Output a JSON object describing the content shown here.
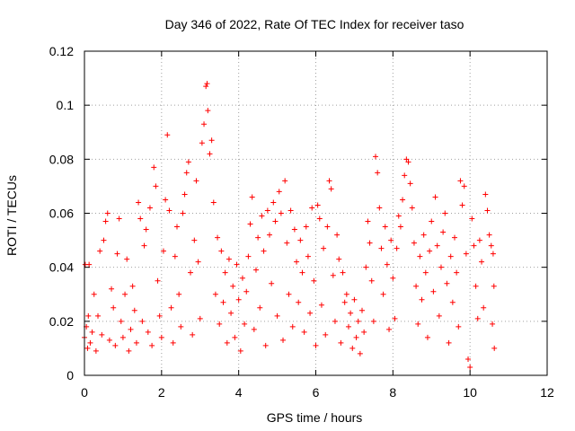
{
  "chart_data": {
    "type": "scatter",
    "title": "Day 346 of 2022, Rate Of TEC Index for receiver taso",
    "xlabel": "GPS time / hours",
    "ylabel": "ROTI / TECUs",
    "xlim": [
      0,
      12
    ],
    "ylim": [
      0,
      0.12
    ],
    "x_ticks": [
      0,
      2,
      4,
      6,
      8,
      10,
      12
    ],
    "x_tick_labels": [
      "0",
      "2",
      "4",
      "6",
      "8",
      "10",
      "12"
    ],
    "y_ticks": [
      0,
      0.02,
      0.04,
      0.06,
      0.08,
      0.1,
      0.12
    ],
    "y_tick_labels": [
      "0",
      "0.02",
      "0.04",
      "0.06",
      "0.08",
      "0.1",
      "0.12"
    ],
    "grid": true,
    "marker": "+",
    "color": "#ff0000",
    "series": [
      {
        "points": [
          [
            0.0,
            0.014
          ],
          [
            0.02,
            0.041
          ],
          [
            0.05,
            0.018
          ],
          [
            0.08,
            0.01
          ],
          [
            0.1,
            0.022
          ],
          [
            0.12,
            0.041
          ],
          [
            0.15,
            0.012
          ],
          [
            0.2,
            0.016
          ],
          [
            0.25,
            0.03
          ],
          [
            0.3,
            0.009
          ],
          [
            0.35,
            0.022
          ],
          [
            0.4,
            0.046
          ],
          [
            0.45,
            0.015
          ],
          [
            0.5,
            0.05
          ],
          [
            0.55,
            0.057
          ],
          [
            0.6,
            0.06
          ],
          [
            0.65,
            0.013
          ],
          [
            0.7,
            0.032
          ],
          [
            0.75,
            0.025
          ],
          [
            0.8,
            0.011
          ],
          [
            0.85,
            0.045
          ],
          [
            0.9,
            0.058
          ],
          [
            0.95,
            0.02
          ],
          [
            1.0,
            0.014
          ],
          [
            1.05,
            0.03
          ],
          [
            1.1,
            0.043
          ],
          [
            1.15,
            0.009
          ],
          [
            1.2,
            0.017
          ],
          [
            1.25,
            0.033
          ],
          [
            1.3,
            0.024
          ],
          [
            1.35,
            0.012
          ],
          [
            1.4,
            0.064
          ],
          [
            1.45,
            0.058
          ],
          [
            1.5,
            0.02
          ],
          [
            1.55,
            0.048
          ],
          [
            1.6,
            0.054
          ],
          [
            1.65,
            0.016
          ],
          [
            1.7,
            0.062
          ],
          [
            1.75,
            0.011
          ],
          [
            1.8,
            0.077
          ],
          [
            1.85,
            0.07
          ],
          [
            1.9,
            0.035
          ],
          [
            1.95,
            0.022
          ],
          [
            2.0,
            0.014
          ],
          [
            2.05,
            0.046
          ],
          [
            2.1,
            0.065
          ],
          [
            2.15,
            0.089
          ],
          [
            2.2,
            0.061
          ],
          [
            2.25,
            0.025
          ],
          [
            2.3,
            0.012
          ],
          [
            2.35,
            0.044
          ],
          [
            2.4,
            0.055
          ],
          [
            2.45,
            0.03
          ],
          [
            2.5,
            0.018
          ],
          [
            2.55,
            0.06
          ],
          [
            2.6,
            0.067
          ],
          [
            2.65,
            0.075
          ],
          [
            2.7,
            0.079
          ],
          [
            2.75,
            0.038
          ],
          [
            2.8,
            0.015
          ],
          [
            2.85,
            0.05
          ],
          [
            2.9,
            0.072
          ],
          [
            2.95,
            0.042
          ],
          [
            3.0,
            0.021
          ],
          [
            3.05,
            0.086
          ],
          [
            3.1,
            0.093
          ],
          [
            3.15,
            0.107
          ],
          [
            3.18,
            0.108
          ],
          [
            3.2,
            0.098
          ],
          [
            3.25,
            0.082
          ],
          [
            3.3,
            0.087
          ],
          [
            3.35,
            0.064
          ],
          [
            3.4,
            0.03
          ],
          [
            3.45,
            0.051
          ],
          [
            3.5,
            0.019
          ],
          [
            3.55,
            0.046
          ],
          [
            3.6,
            0.027
          ],
          [
            3.65,
            0.038
          ],
          [
            3.7,
            0.012
          ],
          [
            3.75,
            0.043
          ],
          [
            3.8,
            0.023
          ],
          [
            3.85,
            0.033
          ],
          [
            3.9,
            0.014
          ],
          [
            3.95,
            0.041
          ],
          [
            4.0,
            0.028
          ],
          [
            4.05,
            0.009
          ],
          [
            4.1,
            0.036
          ],
          [
            4.15,
            0.019
          ],
          [
            4.2,
            0.031
          ],
          [
            4.25,
            0.044
          ],
          [
            4.3,
            0.056
          ],
          [
            4.35,
            0.066
          ],
          [
            4.4,
            0.017
          ],
          [
            4.45,
            0.039
          ],
          [
            4.5,
            0.051
          ],
          [
            4.55,
            0.025
          ],
          [
            4.6,
            0.059
          ],
          [
            4.65,
            0.046
          ],
          [
            4.7,
            0.011
          ],
          [
            4.75,
            0.061
          ],
          [
            4.8,
            0.052
          ],
          [
            4.85,
            0.034
          ],
          [
            4.9,
            0.064
          ],
          [
            4.95,
            0.057
          ],
          [
            5.0,
            0.022
          ],
          [
            5.05,
            0.068
          ],
          [
            5.1,
            0.06
          ],
          [
            5.15,
            0.013
          ],
          [
            5.2,
            0.072
          ],
          [
            5.25,
            0.049
          ],
          [
            5.3,
            0.03
          ],
          [
            5.35,
            0.061
          ],
          [
            5.4,
            0.018
          ],
          [
            5.45,
            0.054
          ],
          [
            5.5,
            0.042
          ],
          [
            5.55,
            0.027
          ],
          [
            5.6,
            0.05
          ],
          [
            5.65,
            0.038
          ],
          [
            5.7,
            0.016
          ],
          [
            5.75,
            0.055
          ],
          [
            5.8,
            0.044
          ],
          [
            5.85,
            0.023
          ],
          [
            5.9,
            0.062
          ],
          [
            5.95,
            0.035
          ],
          [
            6.0,
            0.011
          ],
          [
            6.05,
            0.063
          ],
          [
            6.1,
            0.058
          ],
          [
            6.15,
            0.026
          ],
          [
            6.2,
            0.047
          ],
          [
            6.25,
            0.015
          ],
          [
            6.3,
            0.055
          ],
          [
            6.35,
            0.072
          ],
          [
            6.4,
            0.069
          ],
          [
            6.45,
            0.037
          ],
          [
            6.5,
            0.02
          ],
          [
            6.55,
            0.052
          ],
          [
            6.6,
            0.043
          ],
          [
            6.65,
            0.012
          ],
          [
            6.7,
            0.038
          ],
          [
            6.75,
            0.027
          ],
          [
            6.8,
            0.03
          ],
          [
            6.85,
            0.018
          ],
          [
            6.9,
            0.023
          ],
          [
            6.95,
            0.01
          ],
          [
            7.0,
            0.028
          ],
          [
            7.05,
            0.014
          ],
          [
            7.1,
            0.02
          ],
          [
            7.15,
            0.008
          ],
          [
            7.2,
            0.024
          ],
          [
            7.25,
            0.016
          ],
          [
            7.3,
            0.04
          ],
          [
            7.35,
            0.057
          ],
          [
            7.4,
            0.049
          ],
          [
            7.45,
            0.035
          ],
          [
            7.5,
            0.02
          ],
          [
            7.55,
            0.081
          ],
          [
            7.6,
            0.075
          ],
          [
            7.65,
            0.062
          ],
          [
            7.7,
            0.047
          ],
          [
            7.75,
            0.03
          ],
          [
            7.8,
            0.055
          ],
          [
            7.85,
            0.041
          ],
          [
            7.9,
            0.017
          ],
          [
            7.95,
            0.05
          ],
          [
            8.0,
            0.036
          ],
          [
            8.05,
            0.021
          ],
          [
            8.1,
            0.047
          ],
          [
            8.15,
            0.059
          ],
          [
            8.2,
            0.055
          ],
          [
            8.25,
            0.065
          ],
          [
            8.3,
            0.074
          ],
          [
            8.35,
            0.08
          ],
          [
            8.4,
            0.079
          ],
          [
            8.45,
            0.071
          ],
          [
            8.5,
            0.062
          ],
          [
            8.55,
            0.049
          ],
          [
            8.6,
            0.033
          ],
          [
            8.65,
            0.019
          ],
          [
            8.7,
            0.044
          ],
          [
            8.75,
            0.028
          ],
          [
            8.8,
            0.052
          ],
          [
            8.85,
            0.038
          ],
          [
            8.9,
            0.014
          ],
          [
            8.95,
            0.046
          ],
          [
            9.0,
            0.057
          ],
          [
            9.05,
            0.031
          ],
          [
            9.1,
            0.066
          ],
          [
            9.15,
            0.048
          ],
          [
            9.2,
            0.022
          ],
          [
            9.25,
            0.04
          ],
          [
            9.3,
            0.053
          ],
          [
            9.35,
            0.06
          ],
          [
            9.4,
            0.034
          ],
          [
            9.45,
            0.012
          ],
          [
            9.5,
            0.044
          ],
          [
            9.55,
            0.027
          ],
          [
            9.6,
            0.051
          ],
          [
            9.65,
            0.038
          ],
          [
            9.7,
            0.018
          ],
          [
            9.75,
            0.072
          ],
          [
            9.8,
            0.063
          ],
          [
            9.85,
            0.07
          ],
          [
            9.9,
            0.045
          ],
          [
            9.95,
            0.006
          ],
          [
            10.0,
            0.003
          ],
          [
            10.05,
            0.058
          ],
          [
            10.1,
            0.048
          ],
          [
            10.15,
            0.033
          ],
          [
            10.2,
            0.021
          ],
          [
            10.25,
            0.05
          ],
          [
            10.3,
            0.042
          ],
          [
            10.35,
            0.025
          ],
          [
            10.4,
            0.067
          ],
          [
            10.45,
            0.061
          ],
          [
            10.5,
            0.052
          ],
          [
            10.55,
            0.048
          ],
          [
            10.6,
            0.045
          ],
          [
            10.63,
            0.01
          ],
          [
            10.62,
            0.033
          ],
          [
            10.58,
            0.019
          ]
        ]
      }
    ]
  }
}
